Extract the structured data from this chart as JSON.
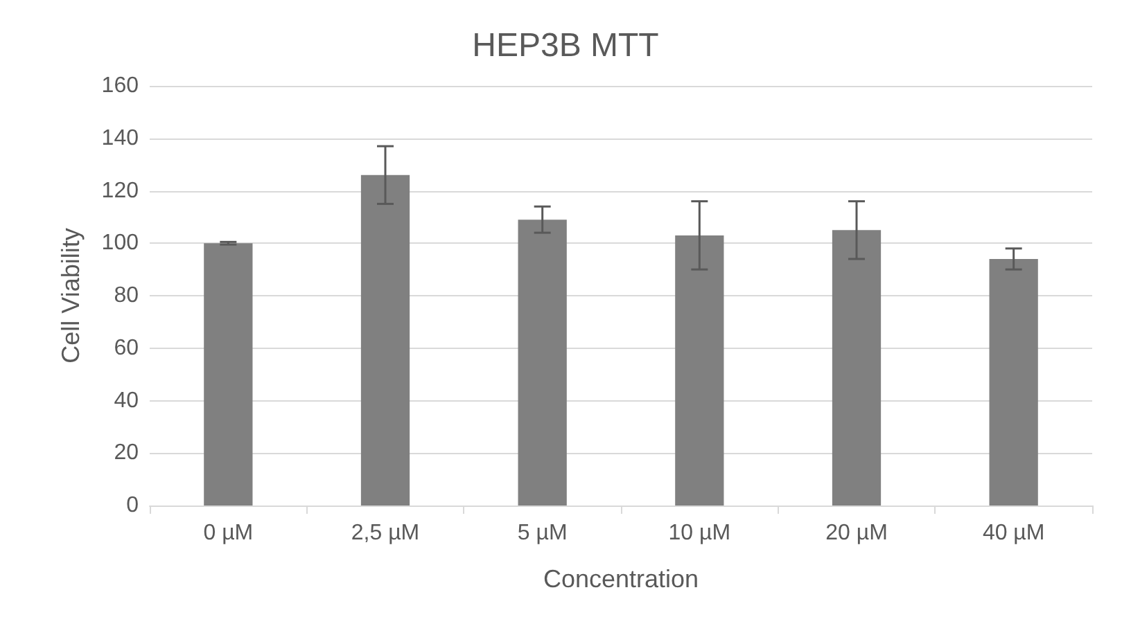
{
  "chart_data": {
    "type": "bar",
    "title": "HEP3B MTT",
    "xlabel": "Concentration",
    "ylabel": "Cell Viability",
    "categories": [
      "0 µM",
      "2,5 µM",
      "5 µM",
      "10 µM",
      "20 µM",
      "40 µM"
    ],
    "values": [
      100,
      126,
      109,
      103,
      105,
      94
    ],
    "errors": [
      0.5,
      11,
      5,
      13,
      11,
      4
    ],
    "color": "#808080",
    "ylim": [
      0,
      160
    ],
    "yticks": [
      0,
      20,
      40,
      60,
      80,
      100,
      120,
      140,
      160
    ],
    "grid": "y"
  }
}
